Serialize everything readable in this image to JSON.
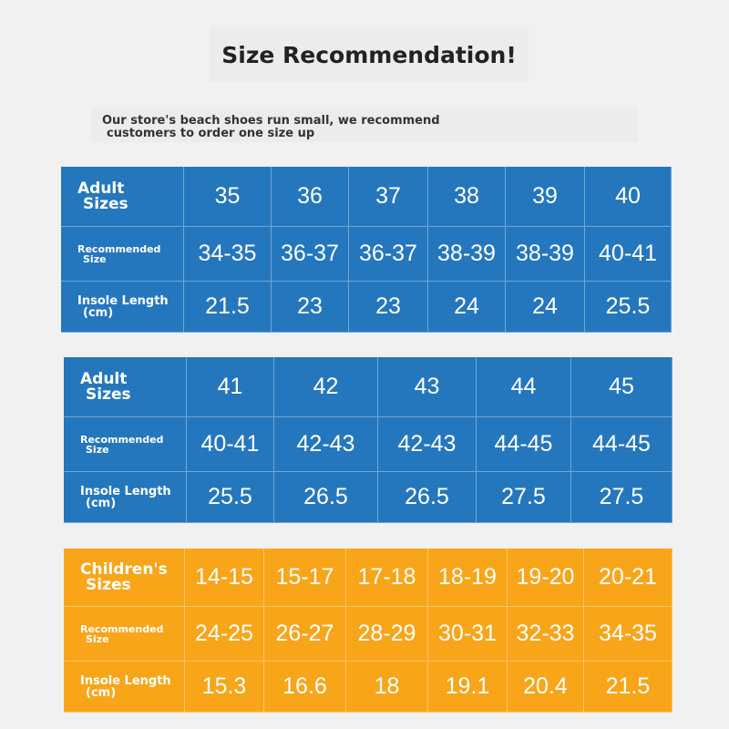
{
  "title": "Size Recommendation!",
  "note": {
    "line1": "Our store's beach shoes run small, we recommend",
    "line2": "customers to order one size up"
  },
  "colors": {
    "adult_table": "#2577bd",
    "children_table": "#f9a51a"
  },
  "tables": [
    {
      "rows": [
        {
          "label1": "Adult",
          "label2": "Sizes",
          "values": [
            "35",
            "36",
            "37",
            "38",
            "39",
            "40"
          ]
        },
        {
          "label1": "Recommended",
          "label2": "Size",
          "values": [
            "34-35",
            "36-37",
            "36-37",
            "38-39",
            "38-39",
            "40-41"
          ]
        },
        {
          "label1": "Insole Length",
          "label2": "(cm)",
          "values": [
            "21.5",
            "23",
            "23",
            "24",
            "24",
            "25.5"
          ]
        }
      ]
    },
    {
      "rows": [
        {
          "label1": "Adult",
          "label2": "Sizes",
          "values": [
            "41",
            "42",
            "43",
            "44",
            "45"
          ]
        },
        {
          "label1": "Recommended",
          "label2": "Size",
          "values": [
            "40-41",
            "42-43",
            "42-43",
            "44-45",
            "44-45"
          ]
        },
        {
          "label1": "Insole Length",
          "label2": "(cm)",
          "values": [
            "25.5",
            "26.5",
            "26.5",
            "27.5",
            "27.5"
          ]
        }
      ]
    },
    {
      "rows": [
        {
          "label1": "Children's",
          "label2": "Sizes",
          "values": [
            "14-15",
            "15-17",
            "17-18",
            "18-19",
            "19-20",
            "20-21"
          ]
        },
        {
          "label1": "Recommended",
          "label2": "Size",
          "values": [
            "24-25",
            "26-27",
            "28-29",
            "30-31",
            "32-33",
            "34-35"
          ]
        },
        {
          "label1": "Insole Length",
          "label2": "(cm)",
          "values": [
            "15.3",
            "16.6",
            "18",
            "19.1",
            "20.4",
            "21.5"
          ]
        }
      ]
    }
  ]
}
